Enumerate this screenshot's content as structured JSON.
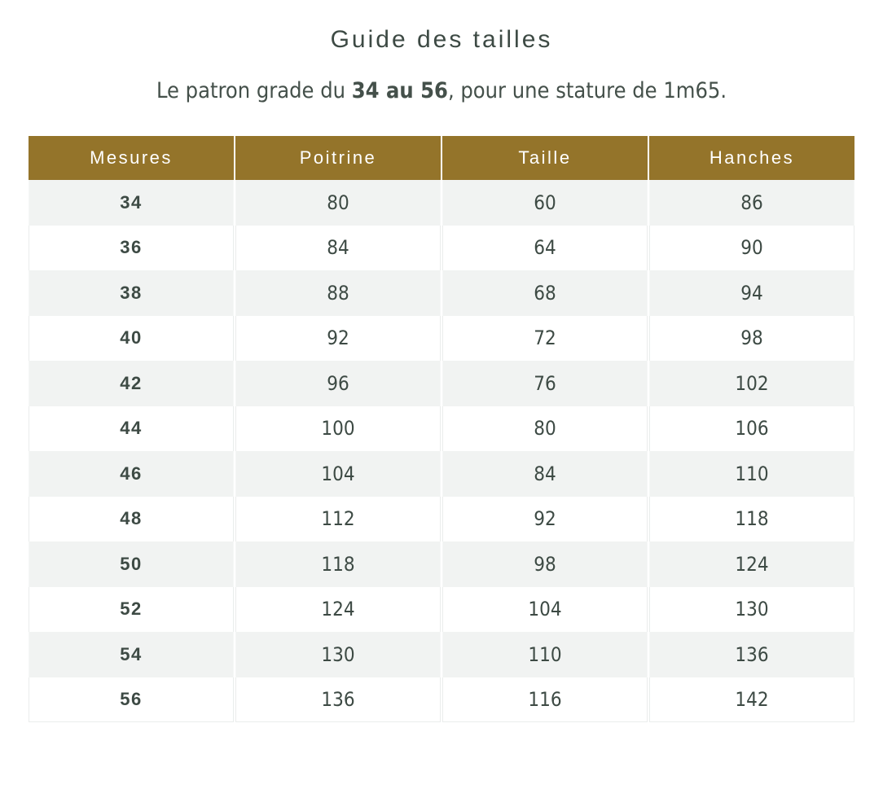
{
  "page": {
    "title": "Guide des tailles",
    "subtitle": {
      "prefix": "Le patron grade du ",
      "bold": "34 au 56",
      "suffix": ", pour une stature de 1m65."
    }
  },
  "size_table": {
    "headers": [
      "Mesures",
      "Poitrine",
      "Taille",
      "Hanches"
    ],
    "rows": [
      {
        "mesures": "34",
        "poitrine": "80",
        "taille": "60",
        "hanches": "86"
      },
      {
        "mesures": "36",
        "poitrine": "84",
        "taille": "64",
        "hanches": "90"
      },
      {
        "mesures": "38",
        "poitrine": "88",
        "taille": "68",
        "hanches": "94"
      },
      {
        "mesures": "40",
        "poitrine": "92",
        "taille": "72",
        "hanches": "98"
      },
      {
        "mesures": "42",
        "poitrine": "96",
        "taille": "76",
        "hanches": "102"
      },
      {
        "mesures": "44",
        "poitrine": "100",
        "taille": "80",
        "hanches": "106"
      },
      {
        "mesures": "46",
        "poitrine": "104",
        "taille": "84",
        "hanches": "110"
      },
      {
        "mesures": "48",
        "poitrine": "112",
        "taille": "92",
        "hanches": "118"
      },
      {
        "mesures": "50",
        "poitrine": "118",
        "taille": "98",
        "hanches": "124"
      },
      {
        "mesures": "52",
        "poitrine": "124",
        "taille": "104",
        "hanches": "130"
      },
      {
        "mesures": "54",
        "poitrine": "130",
        "taille": "110",
        "hanches": "136"
      },
      {
        "mesures": "56",
        "poitrine": "136",
        "taille": "116",
        "hanches": "142"
      }
    ]
  },
  "colors": {
    "header_bg": "#94742a",
    "header_text": "#ffffff",
    "alt_row_bg": "#f1f3f2",
    "body_text": "#3d4a44",
    "border": "#eaedec"
  }
}
